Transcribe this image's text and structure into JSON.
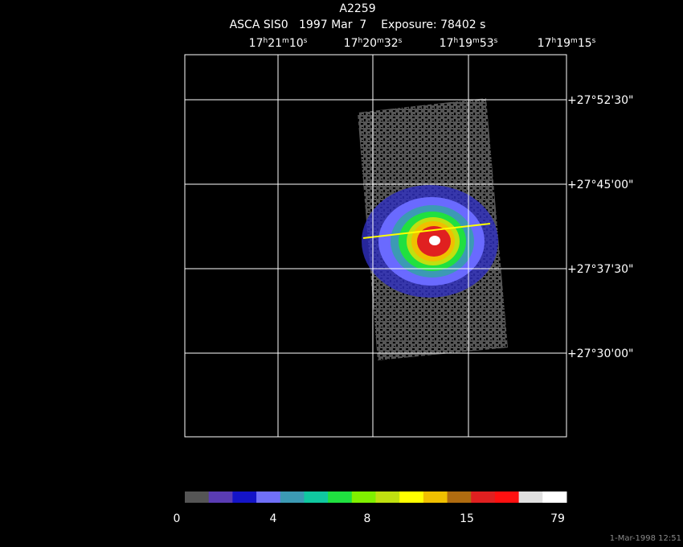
{
  "title": "A2259",
  "subtitle": "ASCA SIS0   1997 Mar  7    Exposure: 78402 s",
  "ra_labels": [
    [
      "17",
      "h",
      "21",
      "m",
      "10",
      "s"
    ],
    [
      "17",
      "h",
      "20",
      "m",
      "32",
      "s"
    ],
    [
      "17",
      "h",
      "19",
      "m",
      "53",
      "s"
    ],
    [
      "17",
      "h",
      "19",
      "m",
      "15",
      "s"
    ]
  ],
  "dec_labels": [
    "+27°52'30\"",
    "+27°45'00\"",
    "+27°37'30\"",
    "+27°30'00\""
  ],
  "colorbar": {
    "colors": [
      "#555555",
      "#5a3cb4",
      "#1414c8",
      "#7070f8",
      "#3c9ab4",
      "#10c8a0",
      "#20e040",
      "#80f000",
      "#c0e010",
      "#ffff00",
      "#f0c000",
      "#b06c10",
      "#e02020",
      "#ff1010",
      "#e0e0e0",
      "#ffffff"
    ],
    "ticks": [
      "0",
      "4",
      "8",
      "15",
      "79"
    ]
  },
  "timestamp": "1-Mar-1998 12:51"
}
